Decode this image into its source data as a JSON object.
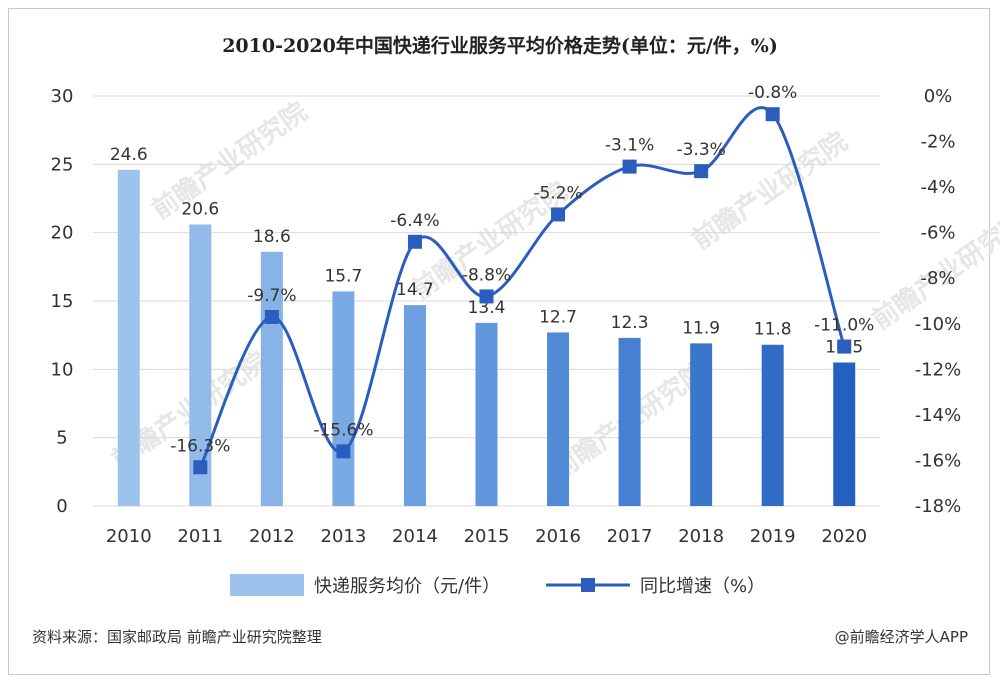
{
  "chart_data": {
    "type": "bar+line",
    "title": "2010-2020年中国快递行业服务平均价格走势(单位：元/件，%)",
    "categories": [
      "2010",
      "2011",
      "2012",
      "2013",
      "2014",
      "2015",
      "2016",
      "2017",
      "2018",
      "2019",
      "2020"
    ],
    "series": [
      {
        "name": "快递服务均价（元/件）",
        "type": "bar",
        "axis": "left",
        "values": [
          24.6,
          20.6,
          18.6,
          15.7,
          14.7,
          13.4,
          12.7,
          12.3,
          11.9,
          11.8,
          10.5
        ],
        "labels": [
          "24.6",
          "20.6",
          "18.6",
          "15.7",
          "14.7",
          "13.4",
          "12.7",
          "12.3",
          "11.9",
          "11.8",
          "10.5"
        ],
        "colors": [
          "#9dc3ec",
          "#93bbea",
          "#87b3e7",
          "#7aaae4",
          "#6da0e0",
          "#5f96dc",
          "#518bd7",
          "#4580d2",
          "#3a76cc",
          "#306cc6",
          "#2660bf"
        ]
      },
      {
        "name": "同比增速（%）",
        "type": "line",
        "axis": "right",
        "values": [
          null,
          -16.3,
          -9.7,
          -15.6,
          -6.4,
          -8.8,
          -5.2,
          -3.1,
          -3.3,
          -0.8,
          -11.0
        ],
        "labels": [
          "",
          "-16.3%",
          "-9.7%",
          "-15.6%",
          "-6.4%",
          "-8.8%",
          "-5.2%",
          "-3.1%",
          "-3.3%",
          "-0.8%",
          "-11.0%"
        ],
        "color": "#2a5dbd"
      }
    ],
    "y_left": {
      "min": 0,
      "max": 30,
      "ticks": [
        "0",
        "5",
        "10",
        "15",
        "20",
        "25",
        "30"
      ]
    },
    "y_right": {
      "min": -18,
      "max": 0,
      "ticks": [
        "0%",
        "-2%",
        "-4%",
        "-6%",
        "-8%",
        "-10%",
        "-12%",
        "-14%",
        "-16%",
        "-18%"
      ]
    },
    "grid": true,
    "legend_position": "bottom"
  },
  "footer": {
    "source": "资料来源：国家邮政局 前瞻产业研究院整理",
    "brand": "@前瞻经济学人APP"
  },
  "watermark": {
    "text": "前瞻产业研究院"
  },
  "colors": {
    "line": "#2a5dbd",
    "grid": "#d9d9d9",
    "legend_bar": "#9dc3ec"
  }
}
